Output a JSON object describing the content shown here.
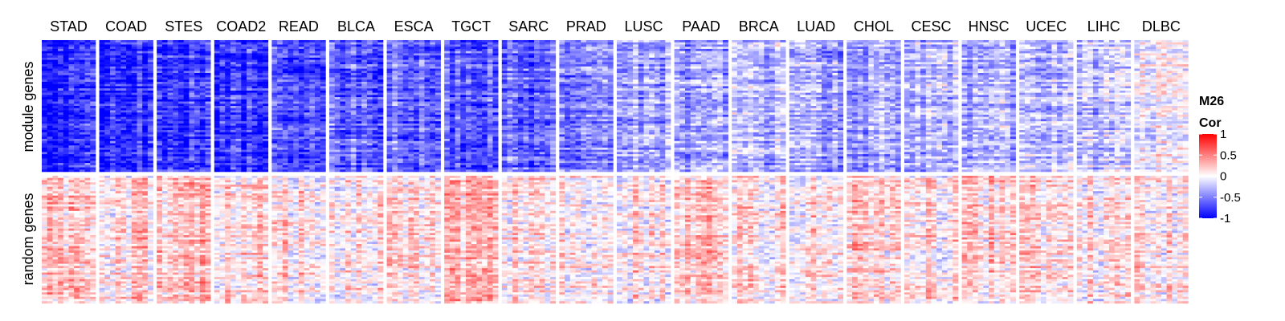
{
  "chart_data": {
    "type": "heatmap",
    "columns": [
      "STAD",
      "COAD",
      "STES",
      "COAD2",
      "READ",
      "BLCA",
      "ESCA",
      "TGCT",
      "SARC",
      "PRAD",
      "LUSC",
      "PAAD",
      "BRCA",
      "LUAD",
      "CHOL",
      "CESC",
      "HNSC",
      "UCEC",
      "LIHC",
      "DLBC"
    ],
    "row_groups": [
      "module genes",
      "random genes"
    ],
    "mean_correlation": {
      "module genes": [
        -0.85,
        -0.8,
        -0.8,
        -0.8,
        -0.7,
        -0.6,
        -0.55,
        -0.65,
        -0.6,
        -0.5,
        -0.35,
        -0.35,
        -0.3,
        -0.35,
        -0.35,
        -0.25,
        -0.3,
        -0.25,
        -0.25,
        0.0
      ],
      "random genes": [
        0.2,
        0.15,
        0.2,
        0.15,
        0.1,
        0.1,
        0.15,
        0.25,
        0.15,
        0.05,
        0.1,
        0.2,
        0.1,
        0.1,
        0.2,
        0.1,
        0.15,
        0.1,
        0.1,
        0.1
      ]
    },
    "legend": {
      "title_line1": "M26",
      "title_line2": "Cor",
      "ticks": [
        "1",
        "0.5",
        "0",
        "-0.5",
        "-1"
      ],
      "tick_values": [
        1,
        0.5,
        0,
        -0.5,
        -1
      ],
      "range": [
        -1,
        1
      ],
      "colors": {
        "low": "#0000ff",
        "mid": "#ffffff",
        "high": "#ff0000"
      }
    }
  }
}
